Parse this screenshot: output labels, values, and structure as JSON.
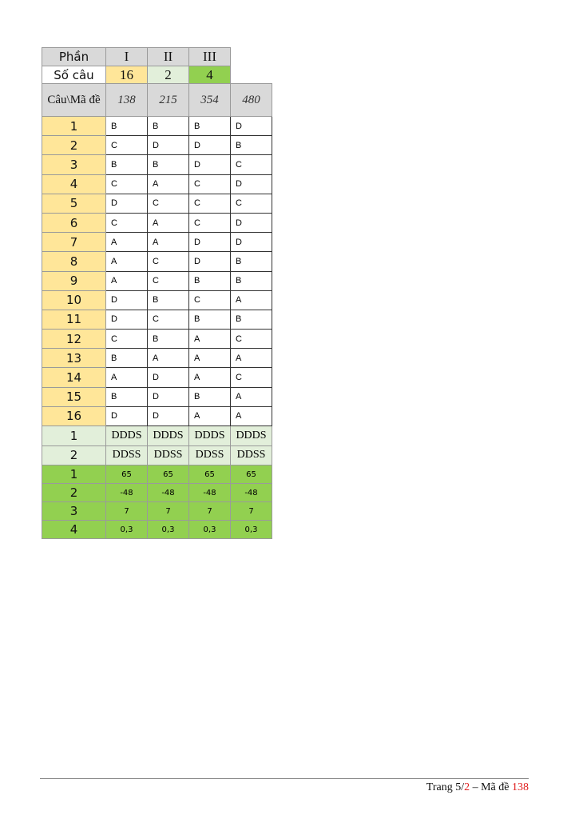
{
  "header": {
    "part_label": "Phần",
    "parts": [
      "I",
      "II",
      "III"
    ],
    "count_label": "Số câu",
    "counts": [
      "16",
      "2",
      "4"
    ],
    "code_label": "Câu\\Mã đề",
    "codes": [
      "138",
      "215",
      "354",
      "480"
    ]
  },
  "part1": [
    {
      "q": "1",
      "a": [
        "B",
        "B",
        "B",
        "D"
      ]
    },
    {
      "q": "2",
      "a": [
        "C",
        "D",
        "D",
        "B"
      ]
    },
    {
      "q": "3",
      "a": [
        "B",
        "B",
        "D",
        "C"
      ]
    },
    {
      "q": "4",
      "a": [
        "C",
        "A",
        "C",
        "D"
      ]
    },
    {
      "q": "5",
      "a": [
        "D",
        "C",
        "C",
        "C"
      ]
    },
    {
      "q": "6",
      "a": [
        "C",
        "A",
        "C",
        "D"
      ]
    },
    {
      "q": "7",
      "a": [
        "A",
        "A",
        "D",
        "D"
      ]
    },
    {
      "q": "8",
      "a": [
        "A",
        "C",
        "D",
        "B"
      ]
    },
    {
      "q": "9",
      "a": [
        "A",
        "C",
        "B",
        "B"
      ]
    },
    {
      "q": "10",
      "a": [
        "D",
        "B",
        "C",
        "A"
      ]
    },
    {
      "q": "11",
      "a": [
        "D",
        "C",
        "B",
        "B"
      ]
    },
    {
      "q": "12",
      "a": [
        "C",
        "B",
        "A",
        "C"
      ]
    },
    {
      "q": "13",
      "a": [
        "B",
        "A",
        "A",
        "A"
      ]
    },
    {
      "q": "14",
      "a": [
        "A",
        "D",
        "A",
        "C"
      ]
    },
    {
      "q": "15",
      "a": [
        "B",
        "D",
        "B",
        "A"
      ]
    },
    {
      "q": "16",
      "a": [
        "D",
        "D",
        "A",
        "A"
      ]
    }
  ],
  "part2": [
    {
      "q": "1",
      "a": [
        "DDDS",
        "DDDS",
        "DDDS",
        "DDDS"
      ]
    },
    {
      "q": "2",
      "a": [
        "DDSS",
        "DDSS",
        "DDSS",
        "DDSS"
      ]
    }
  ],
  "part3": [
    {
      "q": "1",
      "a": [
        "65",
        "65",
        "65",
        "65"
      ]
    },
    {
      "q": "2",
      "a": [
        "-48",
        "-48",
        "-48",
        "-48"
      ]
    },
    {
      "q": "3",
      "a": [
        "7",
        "7",
        "7",
        "7"
      ]
    },
    {
      "q": "4",
      "a": [
        "0,3",
        "0,3",
        "0,3",
        "0,3"
      ]
    }
  ],
  "colors": {
    "part1": "#ffe699",
    "part2": "#e2efda",
    "part3": "#92d050",
    "header": "#d9d9d9",
    "highlight": "#e02020"
  },
  "footer": {
    "prefix": "Trang 5/",
    "total": "2",
    "mid": " – Mã đề ",
    "code": "138"
  }
}
